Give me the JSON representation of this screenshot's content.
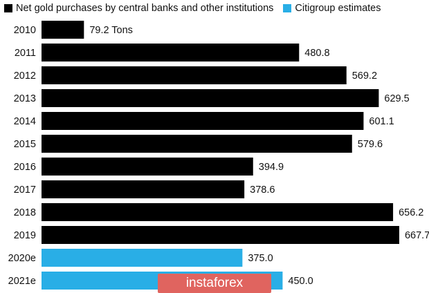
{
  "legend": [
    {
      "label": "Net gold purchases by central banks and other institutions",
      "color": "#000000"
    },
    {
      "label": "Citigroup estimates",
      "color": "#29aee6"
    }
  ],
  "watermark": "instaforex",
  "chart_data": {
    "type": "bar",
    "orientation": "horizontal",
    "categories": [
      "2010",
      "2011",
      "2012",
      "2013",
      "2014",
      "2015",
      "2016",
      "2017",
      "2018",
      "2019",
      "2020e",
      "2021e"
    ],
    "values": [
      79.2,
      480.8,
      569.2,
      629.5,
      601.1,
      579.6,
      394.9,
      378.6,
      656.2,
      667.7,
      375.0,
      450.0
    ],
    "value_labels": [
      "79.2 Tons",
      "480.8",
      "569.2",
      "629.5",
      "601.1",
      "579.6",
      "394.9",
      "378.6",
      "656.2",
      "667.7",
      "375.0",
      "450.0"
    ],
    "series_index": [
      0,
      0,
      0,
      0,
      0,
      0,
      0,
      0,
      0,
      0,
      1,
      1
    ],
    "series": [
      {
        "name": "Net gold purchases by central banks and other institutions",
        "color": "#000000"
      },
      {
        "name": "Citigroup estimates",
        "color": "#29aee6"
      }
    ],
    "title": "",
    "xlabel": "",
    "ylabel": "",
    "xlim": [
      0,
      700
    ],
    "grid": false,
    "legend_position": "top-left"
  }
}
